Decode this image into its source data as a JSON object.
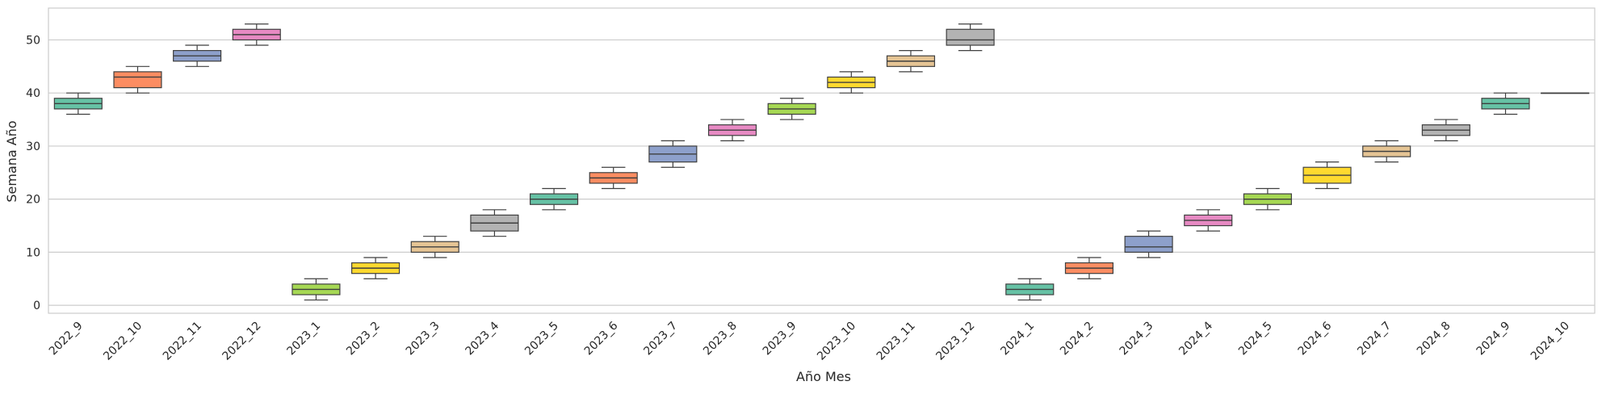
{
  "chart_data": {
    "type": "box",
    "xlabel": "Año Mes",
    "ylabel": "Semana Año",
    "ylim": [
      -1.5,
      56
    ],
    "yticks": [
      0,
      10,
      20,
      30,
      40,
      50
    ],
    "grid": "horizontal",
    "categories": [
      "2022_9",
      "2022_10",
      "2022_11",
      "2022_12",
      "2023_1",
      "2023_2",
      "2023_3",
      "2023_4",
      "2023_5",
      "2023_6",
      "2023_7",
      "2023_8",
      "2023_9",
      "2023_10",
      "2023_11",
      "2023_12",
      "2024_1",
      "2024_2",
      "2024_3",
      "2024_4",
      "2024_5",
      "2024_6",
      "2024_7",
      "2024_8",
      "2024_9",
      "2024_10"
    ],
    "boxes": [
      {
        "min": 36,
        "q1": 37,
        "median": 38,
        "q3": 39,
        "max": 40
      },
      {
        "min": 40,
        "q1": 41,
        "median": 43,
        "q3": 44,
        "max": 45
      },
      {
        "min": 45,
        "q1": 46,
        "median": 47,
        "q3": 48,
        "max": 49
      },
      {
        "min": 49,
        "q1": 50,
        "median": 51,
        "q3": 52,
        "max": 53
      },
      {
        "min": 1,
        "q1": 2,
        "median": 3,
        "q3": 4,
        "max": 5
      },
      {
        "min": 5,
        "q1": 6,
        "median": 7,
        "q3": 8,
        "max": 9
      },
      {
        "min": 9,
        "q1": 10,
        "median": 11,
        "q3": 12,
        "max": 13
      },
      {
        "min": 13,
        "q1": 14,
        "median": 15.5,
        "q3": 17,
        "max": 18
      },
      {
        "min": 18,
        "q1": 19,
        "median": 20,
        "q3": 21,
        "max": 22
      },
      {
        "min": 22,
        "q1": 23,
        "median": 24,
        "q3": 25,
        "max": 26
      },
      {
        "min": 26,
        "q1": 27,
        "median": 28.5,
        "q3": 30,
        "max": 31
      },
      {
        "min": 31,
        "q1": 32,
        "median": 33,
        "q3": 34,
        "max": 35
      },
      {
        "min": 35,
        "q1": 36,
        "median": 37,
        "q3": 38,
        "max": 39
      },
      {
        "min": 40,
        "q1": 41,
        "median": 42,
        "q3": 43,
        "max": 44
      },
      {
        "min": 44,
        "q1": 45,
        "median": 46,
        "q3": 47,
        "max": 48
      },
      {
        "min": 48,
        "q1": 49,
        "median": 50,
        "q3": 52,
        "max": 53
      },
      {
        "min": 1,
        "q1": 2,
        "median": 3,
        "q3": 4,
        "max": 5
      },
      {
        "min": 5,
        "q1": 6,
        "median": 7,
        "q3": 8,
        "max": 9
      },
      {
        "min": 9,
        "q1": 10,
        "median": 11,
        "q3": 13,
        "max": 14
      },
      {
        "min": 14,
        "q1": 15,
        "median": 16,
        "q3": 17,
        "max": 18
      },
      {
        "min": 18,
        "q1": 19,
        "median": 20,
        "q3": 21,
        "max": 22
      },
      {
        "min": 22,
        "q1": 23,
        "median": 24.5,
        "q3": 26,
        "max": 27
      },
      {
        "min": 27,
        "q1": 28,
        "median": 29,
        "q3": 30,
        "max": 31
      },
      {
        "min": 31,
        "q1": 32,
        "median": 33,
        "q3": 34,
        "max": 35
      },
      {
        "min": 36,
        "q1": 37,
        "median": 38,
        "q3": 39,
        "max": 40
      },
      {
        "min": 40,
        "q1": 40,
        "median": 40,
        "q3": 40,
        "max": 40
      }
    ],
    "palette": [
      "#66c2a5",
      "#fc8d62",
      "#8da0cb",
      "#e78ac3",
      "#a6d854",
      "#ffd92f",
      "#e5c494",
      "#b3b3b3"
    ],
    "edge_color": "#3f3f3f",
    "grid_color": "#cccccc",
    "frame_color": "#cccccc"
  }
}
